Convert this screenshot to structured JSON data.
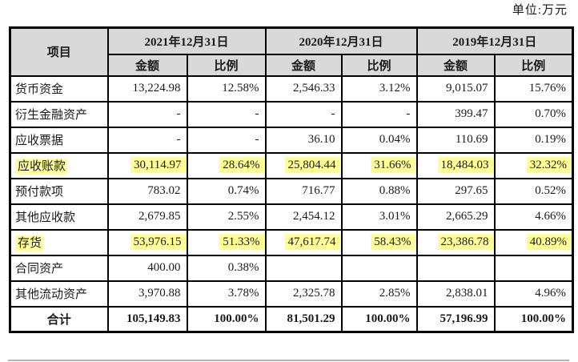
{
  "unit_label": "单位:万元",
  "colors": {
    "header_bg": "#d9d9d9",
    "highlight_yellow": "#ffff99",
    "border": "#000000"
  },
  "table": {
    "item_header": "项目",
    "sub_header_amount": "金额",
    "sub_header_ratio": "比例",
    "col_groups": [
      {
        "date": "2021年12月31日"
      },
      {
        "date": "2020年12月31日"
      },
      {
        "date": "2019年12月31日"
      }
    ],
    "rows": [
      {
        "label": "货币资金",
        "highlight": false,
        "total": false,
        "cells": [
          "13,224.98",
          "12.58%",
          "2,546.33",
          "3.12%",
          "9,015.07",
          "15.76%"
        ]
      },
      {
        "label": "衍生金融资产",
        "highlight": false,
        "total": false,
        "cells": [
          "-",
          "-",
          "-",
          "-",
          "399.47",
          "0.70%"
        ]
      },
      {
        "label": "应收票据",
        "highlight": false,
        "total": false,
        "cells": [
          "-",
          "-",
          "36.10",
          "0.04%",
          "110.69",
          "0.19%"
        ]
      },
      {
        "label": "应收账款",
        "highlight": true,
        "total": false,
        "cells": [
          "30,114.97",
          "28.64%",
          "25,804.44",
          "31.66%",
          "18,484.03",
          "32.32%"
        ]
      },
      {
        "label": "预付款项",
        "highlight": false,
        "total": false,
        "cells": [
          "783.02",
          "0.74%",
          "716.77",
          "0.88%",
          "297.65",
          "0.52%"
        ]
      },
      {
        "label": "其他应收款",
        "highlight": false,
        "total": false,
        "cells": [
          "2,679.85",
          "2.55%",
          "2,454.12",
          "3.01%",
          "2,665.29",
          "4.66%"
        ]
      },
      {
        "label": "存货",
        "highlight": true,
        "total": false,
        "cells": [
          "53,976.15",
          "51.33%",
          "47,617.74",
          "58.43%",
          "23,386.78",
          "40.89%"
        ]
      },
      {
        "label": "合同资产",
        "highlight": false,
        "total": false,
        "cells": [
          "400.00",
          "0.38%",
          "",
          "",
          "",
          ""
        ]
      },
      {
        "label": "其他流动资产",
        "highlight": false,
        "total": false,
        "cells": [
          "3,970.88",
          "3.78%",
          "2,325.78",
          "2.85%",
          "2,838.01",
          "4.96%"
        ]
      },
      {
        "label": "合计",
        "highlight": false,
        "total": true,
        "cells": [
          "105,149.83",
          "100.00%",
          "81,501.29",
          "100.00%",
          "57,196.99",
          "100.00%"
        ]
      }
    ]
  }
}
